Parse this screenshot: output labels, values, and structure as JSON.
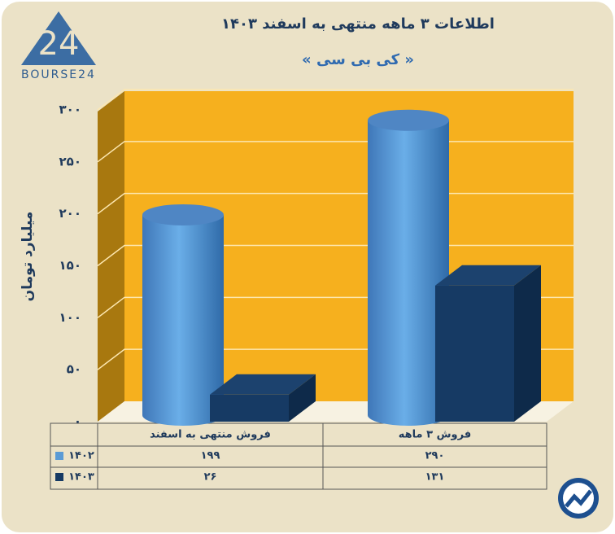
{
  "logo": {
    "mark": "24",
    "name": "BOURSE24"
  },
  "chart_data": {
    "type": "bar3d",
    "title": "اطلاعات ۳ ماهه منتهی به اسفند ۱۴۰۳",
    "subtitle": "« کی بی سی »",
    "y_label": "میلیارد تومان",
    "categories": [
      "فروش منتهی به اسفند",
      "فروش ۳ ماهه"
    ],
    "series": [
      {
        "name": "۱۴۰۲",
        "color": "#5b9bd5",
        "values": [
          199,
          290
        ],
        "value_labels": [
          "۱۹۹",
          "۲۹۰"
        ]
      },
      {
        "name": "۱۴۰۳",
        "color": "#163a64",
        "values": [
          26,
          131
        ],
        "value_labels": [
          "۲۶",
          "۱۳۱"
        ]
      }
    ],
    "ylim": [
      0,
      300
    ],
    "yticks": [
      {
        "value": 0,
        "label": "۰"
      },
      {
        "value": 50,
        "label": "۵۰"
      },
      {
        "value": 100,
        "label": "۱۰۰"
      },
      {
        "value": 150,
        "label": "۱۵۰"
      },
      {
        "value": 200,
        "label": "۲۰۰"
      },
      {
        "value": 250,
        "label": "۲۵۰"
      },
      {
        "value": 300,
        "label": "۳۰۰"
      }
    ],
    "grid": true
  }
}
